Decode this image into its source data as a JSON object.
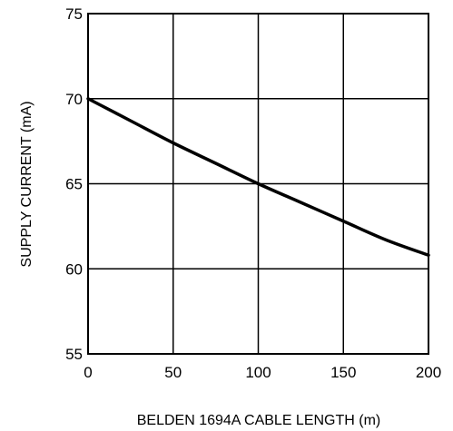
{
  "chart_data": {
    "type": "line",
    "title": "",
    "xlabel": "BELDEN 1694A CABLE LENGTH (m)",
    "ylabel": "SUPPLY CURRENT (mA)",
    "xlim": [
      0,
      200
    ],
    "ylim": [
      55,
      75
    ],
    "xticks": [
      0,
      50,
      100,
      150,
      200
    ],
    "yticks": [
      55,
      60,
      65,
      70,
      75
    ],
    "grid": true,
    "series": [
      {
        "x": [
          0,
          25,
          50,
          75,
          100,
          125,
          150,
          175,
          200
        ],
        "y": [
          70.0,
          68.7,
          67.4,
          66.2,
          65.0,
          63.9,
          62.8,
          61.7,
          60.8
        ],
        "color": "#000000"
      }
    ]
  }
}
